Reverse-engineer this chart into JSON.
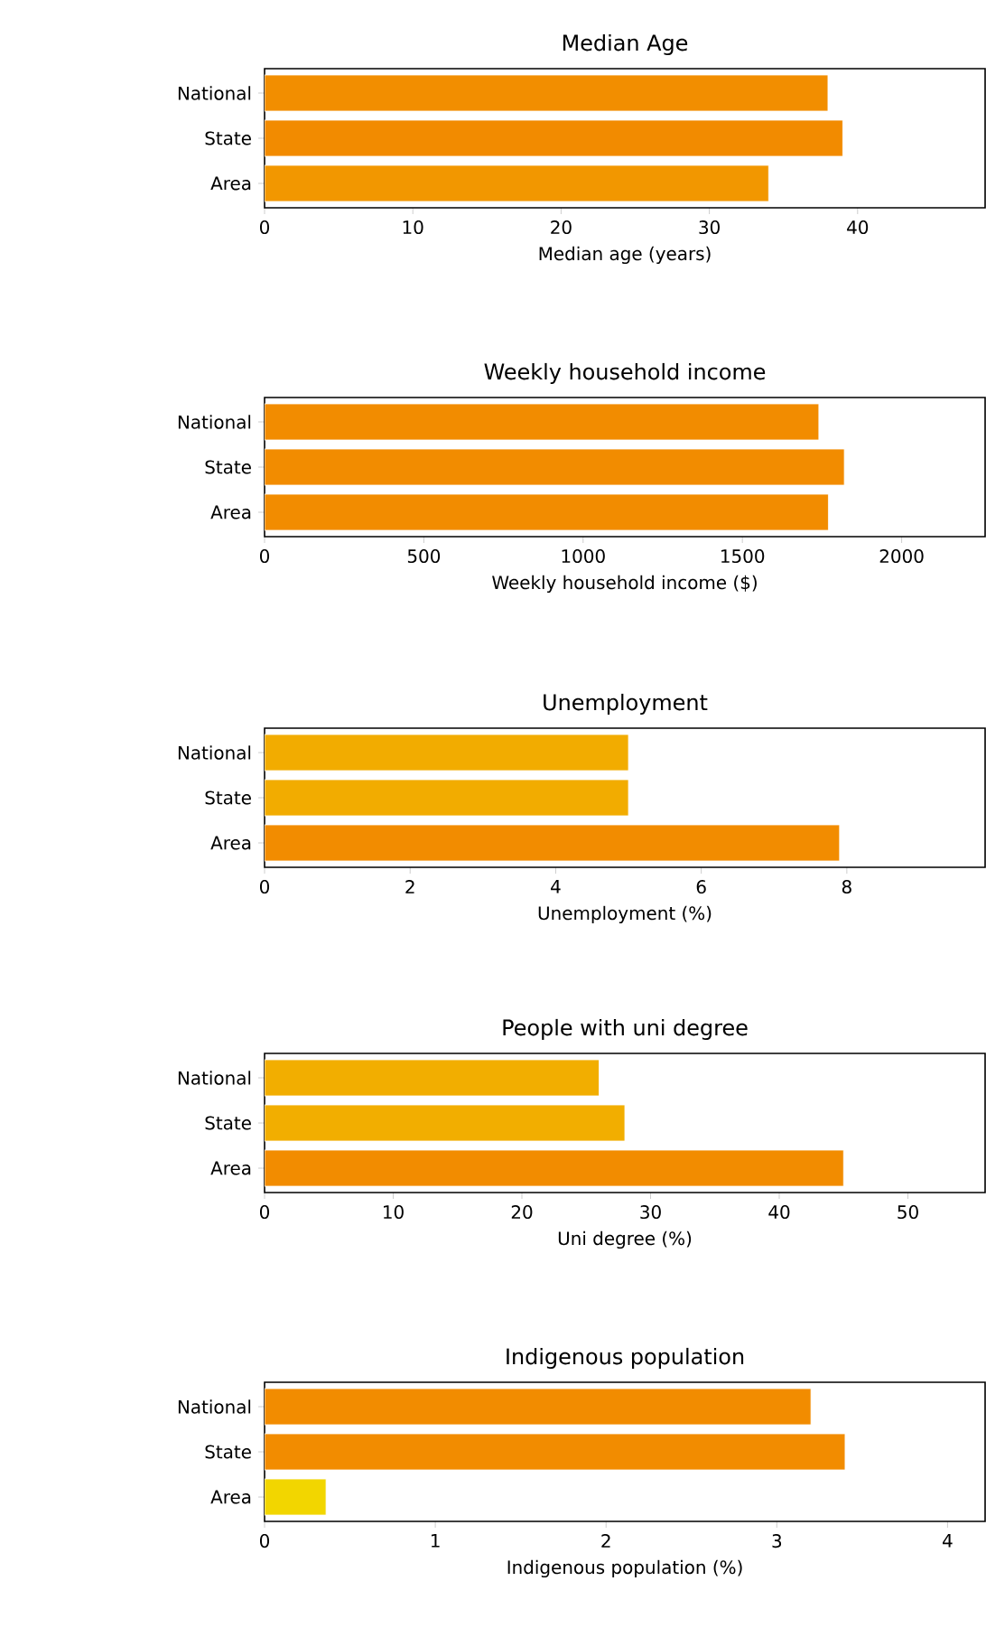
{
  "chart_data": [
    {
      "type": "bar",
      "orientation": "horizontal",
      "title": "Median Age",
      "xlabel": "Median age (years)",
      "categories": [
        "National",
        "State",
        "Area"
      ],
      "values": [
        38,
        39,
        34
      ],
      "colors": [
        "#f28e00",
        "#f28b00",
        "#f29700"
      ],
      "xlim": [
        0,
        48.6
      ],
      "xticks": [
        0,
        10,
        20,
        30,
        40
      ]
    },
    {
      "type": "bar",
      "orientation": "horizontal",
      "title": "Weekly household income",
      "xlabel": "Weekly household income ($)",
      "categories": [
        "National",
        "State",
        "Area"
      ],
      "values": [
        1740,
        1820,
        1770
      ],
      "colors": [
        "#f28c00",
        "#f28c00",
        "#f28c00"
      ],
      "xlim": [
        0,
        2262
      ],
      "xticks": [
        0,
        500,
        1000,
        1500,
        2000
      ]
    },
    {
      "type": "bar",
      "orientation": "horizontal",
      "title": "Unemployment",
      "xlabel": "Unemployment (%)",
      "categories": [
        "National",
        "State",
        "Area"
      ],
      "values": [
        5.0,
        5.0,
        7.9
      ],
      "colors": [
        "#f2ac00",
        "#f2ac00",
        "#f28c00"
      ],
      "xlim": [
        0,
        9.9
      ],
      "xticks": [
        0,
        2,
        4,
        6,
        8
      ]
    },
    {
      "type": "bar",
      "orientation": "horizontal",
      "title": "People with uni degree",
      "xlabel": "Uni degree (%)",
      "categories": [
        "National",
        "State",
        "Area"
      ],
      "values": [
        26,
        28,
        45
      ],
      "colors": [
        "#f2ae00",
        "#f2ae00",
        "#f28c00"
      ],
      "xlim": [
        0,
        56
      ],
      "xticks": [
        0,
        10,
        20,
        30,
        40,
        50
      ]
    },
    {
      "type": "bar",
      "orientation": "horizontal",
      "title": "Indigenous population",
      "xlabel": "Indigenous population (%)",
      "categories": [
        "National",
        "State",
        "Area"
      ],
      "values": [
        3.2,
        3.4,
        0.36
      ],
      "colors": [
        "#f28c00",
        "#f28c00",
        "#f2d600"
      ],
      "xlim": [
        0,
        4.22
      ],
      "xticks": [
        0,
        1,
        2,
        3,
        4
      ]
    }
  ]
}
